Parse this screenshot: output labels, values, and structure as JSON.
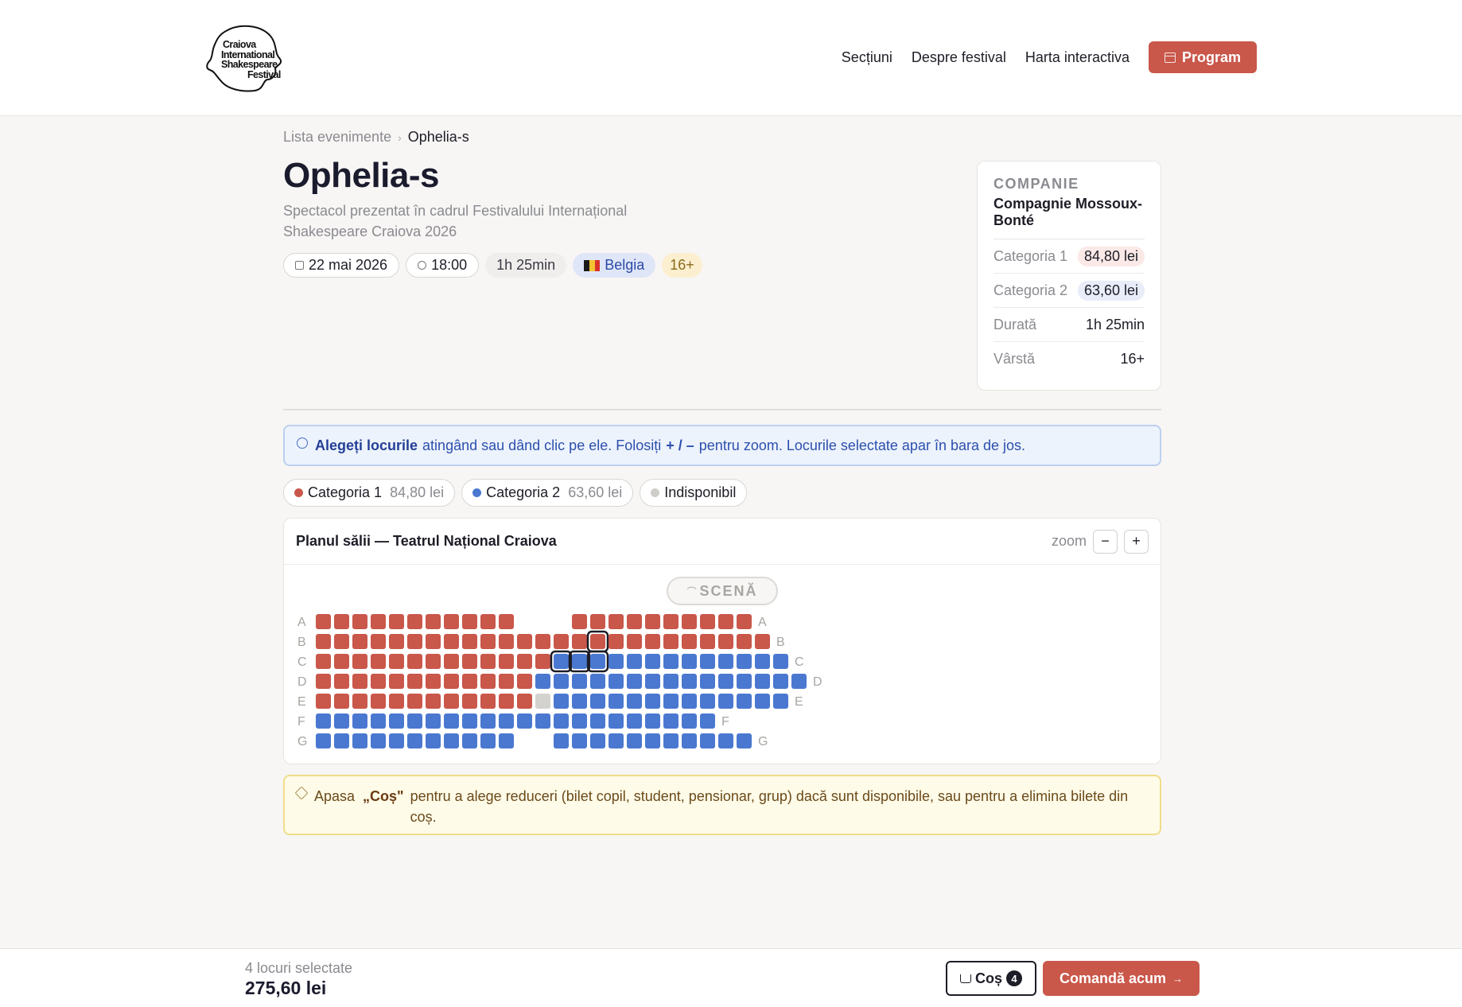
{
  "header": {
    "logo_lines": [
      "Craiova",
      "International",
      "Shakespeare",
      "Festival"
    ],
    "nav": [
      "Secțiuni",
      "Despre festival",
      "Harta interactiva"
    ],
    "program_label": "Program"
  },
  "breadcrumb": {
    "parent": "Lista evenimente",
    "sep": "›",
    "current": "Ophelia-s"
  },
  "event": {
    "title": "Ophelia-s",
    "subtitle": "Spectacol prezentat în cadrul Festivalului Internațional Shakespeare Craiova 2026",
    "date": "22 mai 2026",
    "time": "18:00",
    "duration": "1h 25min",
    "country": "Belgia",
    "age": "16+"
  },
  "info_card": {
    "kicker": "COMPANIE",
    "company": "Compagnie Mossoux-Bonté",
    "rows": [
      {
        "label": "Categoria 1",
        "value": "84,80 lei"
      },
      {
        "label": "Categoria 2",
        "value": "63,60 lei"
      },
      {
        "label": "Durată",
        "value": "1h 25min"
      },
      {
        "label": "Vârstă",
        "value": "16+"
      }
    ]
  },
  "alert": {
    "bold": "Alegeți locurile",
    "text1": "atingând sau dând clic pe ele. Folosiți",
    "zoom_keys": "+ / –",
    "text2": "pentru zoom. Locurile selectate apar în bara de jos."
  },
  "legend": [
    {
      "label": "Categoria 1",
      "price": "84,80 lei",
      "color": "#c9574a"
    },
    {
      "label": "Categoria 2",
      "price": "63,60 lei",
      "color": "#4a78d0"
    },
    {
      "label": "Indisponibil",
      "price": "",
      "color": "#cfcdca"
    }
  ],
  "seatmap": {
    "title": "Planul sălii — Teatrul Național Craiova",
    "zoom_label": "zoom",
    "zoom_out": "−",
    "zoom_in": "+",
    "stage_label": "SCENĂ",
    "colors": {
      "cat1": "#c9574a",
      "cat2": "#4a78d0",
      "unavailable": "#d4d2cf",
      "selected_outline": "#1d1d27"
    },
    "rows": [
      {
        "label": "A",
        "seats": "11111111111___1111111111",
        "right_label": true
      },
      {
        "label": "B",
        "seats": "111111111111111S111111111",
        "right_label": true
      },
      {
        "label": "C",
        "seats": "1111111111111TTT2222222222",
        "right_label": true
      },
      {
        "label": "D",
        "seats": "111111111111222222222222222",
        "right_label": true
      },
      {
        "label": "E",
        "seats": "111111111111X2222222222222",
        "right_label": true
      },
      {
        "label": "F",
        "seats": "2222222222222222222222",
        "right_label": true
      },
      {
        "label": "G",
        "seats": "22222222222__22222222222",
        "right_label": true
      }
    ]
  },
  "hint": {
    "pre": "Apasa",
    "bold": "„Coș\"",
    "text": "pentru a alege reduceri (bilet copil, student, pensionar, grup) dacă sunt disponibile, sau pentru a elimina bilete din coș."
  },
  "cart": {
    "count_text": "4 locuri selectate",
    "total": "275,60 lei",
    "cart_label": "Coș",
    "cart_count": "4",
    "order_label": "Comandă acum",
    "order_arrow": "→"
  }
}
